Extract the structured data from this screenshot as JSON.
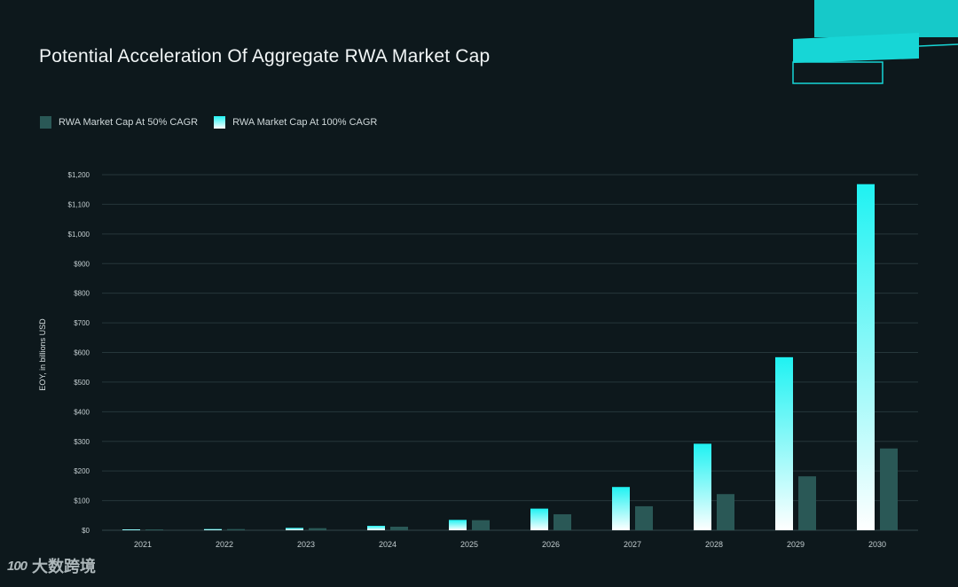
{
  "colors": {
    "background": "#0d181c",
    "series_50": "#2a5856",
    "series_100_top": "#1ff2f2",
    "series_100_bottom": "#ffffff",
    "grid": "#26363a",
    "accent": "#14d3d3"
  },
  "watermark": {
    "logo": "100",
    "text": "大数跨境"
  },
  "chart_data": {
    "type": "bar",
    "title": "Potential Acceleration Of Aggregate RWA Market Cap",
    "xlabel": "",
    "ylabel": "EOY, in billions USD",
    "legend_position": "top-left",
    "ylim": [
      0,
      1200
    ],
    "yticks": [
      0,
      100,
      200,
      300,
      400,
      500,
      600,
      700,
      800,
      900,
      1000,
      1100,
      1200
    ],
    "ytick_labels": [
      "$0",
      "$100",
      "$200",
      "$300",
      "$400",
      "$500",
      "$600",
      "$700",
      "$800",
      "$900",
      "$1,000",
      "$1,100",
      "$1,200"
    ],
    "categories": [
      "2021",
      "2022",
      "2023",
      "2024",
      "2025",
      "2026",
      "2027",
      "2028",
      "2029",
      "2030"
    ],
    "series": [
      {
        "name": "RWA Market Cap At 100% CAGR",
        "values": [
          2,
          4,
          8,
          15,
          35,
          73,
          146,
          292,
          584,
          1168
        ]
      },
      {
        "name": "RWA Market Cap At 50% CAGR",
        "values": [
          2,
          4,
          7,
          12,
          34,
          54,
          81,
          122,
          182,
          276
        ]
      }
    ]
  }
}
